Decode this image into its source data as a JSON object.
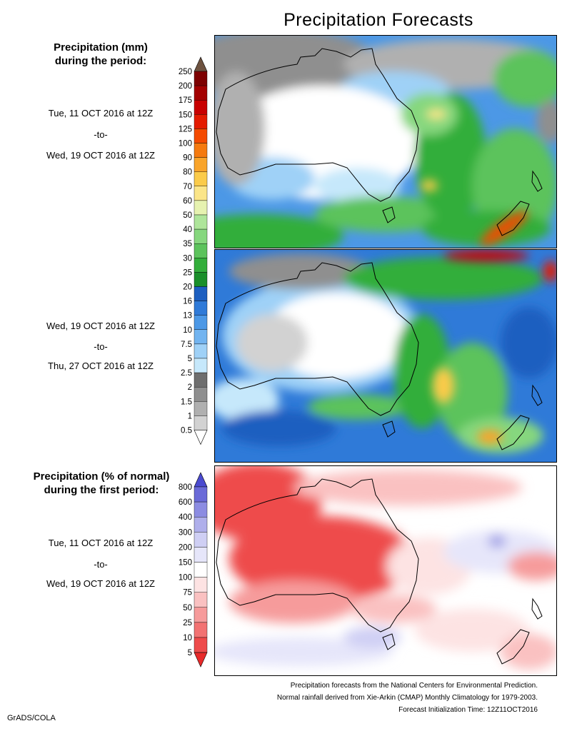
{
  "title": "Precipitation Forecasts",
  "left_column": {
    "header_mm": [
      "Precipitation (mm)",
      "during the period:"
    ],
    "period1": {
      "start": "Tue, 11 OCT 2016 at 12Z",
      "sep": "-to-",
      "end": "Wed, 19 OCT 2016 at 12Z"
    },
    "period2": {
      "start": "Wed, 19 OCT 2016 at 12Z",
      "sep": "-to-",
      "end": "Thu, 27 OCT 2016 at 12Z"
    },
    "header_pct": [
      "Precipitation (% of normal)",
      "during the first period:"
    ],
    "period3": {
      "start": "Tue, 11 OCT 2016 at 12Z",
      "sep": "-to-",
      "end": "Wed, 19 OCT 2016 at 12Z"
    }
  },
  "colorbar_mm": {
    "labels": [
      "250",
      "200",
      "175",
      "150",
      "125",
      "100",
      "90",
      "80",
      "70",
      "60",
      "50",
      "40",
      "35",
      "30",
      "25",
      "20",
      "16",
      "13",
      "10",
      "7.5",
      "5",
      "2.5",
      "2",
      "1.5",
      "1",
      "0.5"
    ],
    "colors": [
      "#6e5340",
      "#7d0000",
      "#a30000",
      "#c80000",
      "#e41b00",
      "#f44a00",
      "#f57a0f",
      "#f9a42a",
      "#fbcb4a",
      "#fbe588",
      "#e6f2b0",
      "#aee59a",
      "#86d77e",
      "#5cc35c",
      "#33ae3b",
      "#1a8f2a",
      "#1d5fc0",
      "#2f7ad8",
      "#4c98e6",
      "#72b4f0",
      "#9fd1f7",
      "#c6e8fb",
      "#6e6e6e",
      "#8f8f8f",
      "#b0b0b0",
      "#d2d2d2",
      "#ffffff"
    ]
  },
  "colorbar_pct": {
    "labels": [
      "800",
      "600",
      "400",
      "300",
      "200",
      "150",
      "100",
      "75",
      "50",
      "25",
      "10",
      "5"
    ],
    "colors": [
      "#4a4ad0",
      "#6a6ad8",
      "#8c8ce2",
      "#afafeb",
      "#cfcff4",
      "#e6e6fa",
      "#ffffff",
      "#fde3e3",
      "#fac1c1",
      "#f69b9b",
      "#f27272",
      "#ee4b4b",
      "#e82a2a"
    ]
  },
  "footer": {
    "line1": "Precipitation forecasts from the National Centers for Environmental Prediction.",
    "line2": "Normal rainfall derived from Xie-Arkin (CMAP) Monthly Climatology for 1979-2003.",
    "line3": "Forecast Initialization Time: 12Z11OCT2016"
  },
  "credit": "GrADS/COLA"
}
